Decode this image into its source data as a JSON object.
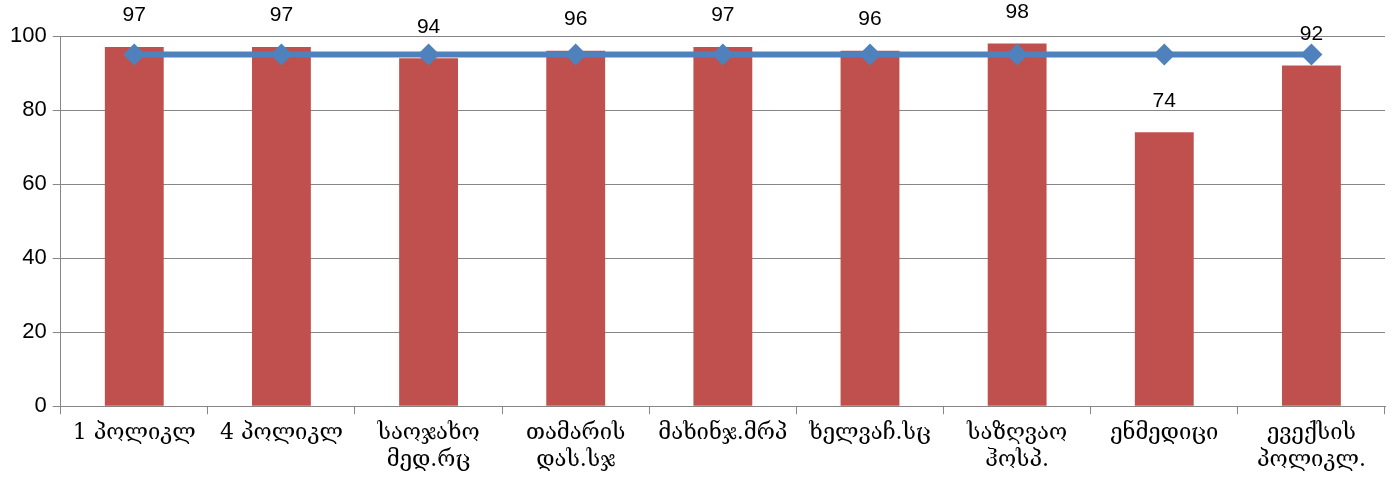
{
  "chart_data": {
    "type": "bar",
    "categories": [
      "1 პოლიკლ",
      "4 პოლიკლ",
      "საოჯახო მედ.რც",
      "თამარის დას.სჯ",
      "მახინჯ.მრპ",
      "ხელვაჩ.სც",
      "საზღვაო ჰოსპ.",
      "ენმედიცი",
      "ევექსის პოლიკლ."
    ],
    "series": [
      {
        "color": "#c0504d",
        "values": [
          97,
          97,
          94,
          96,
          97,
          96,
          98,
          74,
          92
        ],
        "value_labels": [
          "97",
          "97",
          "94",
          "96",
          "97",
          "96",
          "98",
          "74",
          "92"
        ]
      },
      {
        "type": "line",
        "color": "#4f81bd",
        "values": [
          95,
          95,
          95,
          95,
          95,
          95,
          95,
          95,
          95
        ]
      }
    ],
    "ylim": [
      0,
      100
    ],
    "yticks": [
      0,
      20,
      40,
      60,
      80,
      100
    ],
    "grid": "y",
    "marker": "diamond",
    "legend": false
  }
}
